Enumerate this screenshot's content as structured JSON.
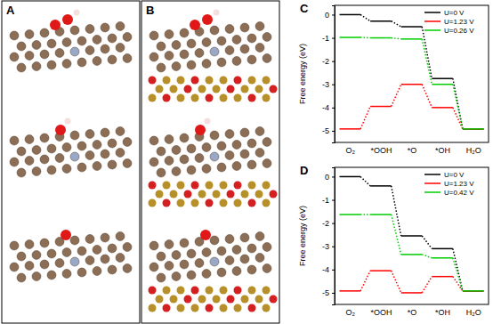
{
  "image_panels": [
    {
      "label": "A"
    },
    {
      "label": "B"
    }
  ],
  "chart_data": [
    {
      "type": "line",
      "title": "C",
      "y_label": "Free energy (eV)",
      "categories": [
        "O₂",
        "*OOH",
        "*O",
        "*OH",
        "H₂O"
      ],
      "ylim": [
        -5.5,
        0.4
      ],
      "yticks": [
        -5,
        -4,
        -3,
        -2,
        -1,
        0
      ],
      "legend": "top-right",
      "series": [
        {
          "name": "U=0 V",
          "color": "#000000",
          "values": [
            0,
            -0.28,
            -0.52,
            -2.75,
            -4.92
          ]
        },
        {
          "name": "U=1.23 V",
          "color": "#ff0000",
          "values": [
            -4.92,
            -3.95,
            -3.0,
            -4.0,
            -4.92
          ]
        },
        {
          "name": "U=0.26 V",
          "color": "#00cc00",
          "values": [
            -0.98,
            -1.0,
            -1.05,
            -3.0,
            -4.92
          ]
        }
      ]
    },
    {
      "type": "line",
      "title": "D",
      "y_label": "Free energy (eV)",
      "categories": [
        "O₂",
        "*OOH",
        "*O",
        "*OH",
        "H₂O"
      ],
      "ylim": [
        -5.5,
        0.4
      ],
      "yticks": [
        -5,
        -4,
        -3,
        -2,
        -1,
        0
      ],
      "legend": "top-right",
      "series": [
        {
          "name": "U=0 V",
          "color": "#000000",
          "values": [
            0,
            -0.4,
            -2.55,
            -3.1,
            -4.92
          ]
        },
        {
          "name": "U=1.23 V",
          "color": "#ff0000",
          "values": [
            -4.92,
            -4.05,
            -5.0,
            -4.3,
            -4.92
          ]
        },
        {
          "name": "U=0.42 V",
          "color": "#00cc00",
          "values": [
            -1.63,
            -1.63,
            -3.35,
            -3.5,
            -4.92
          ]
        }
      ]
    }
  ]
}
